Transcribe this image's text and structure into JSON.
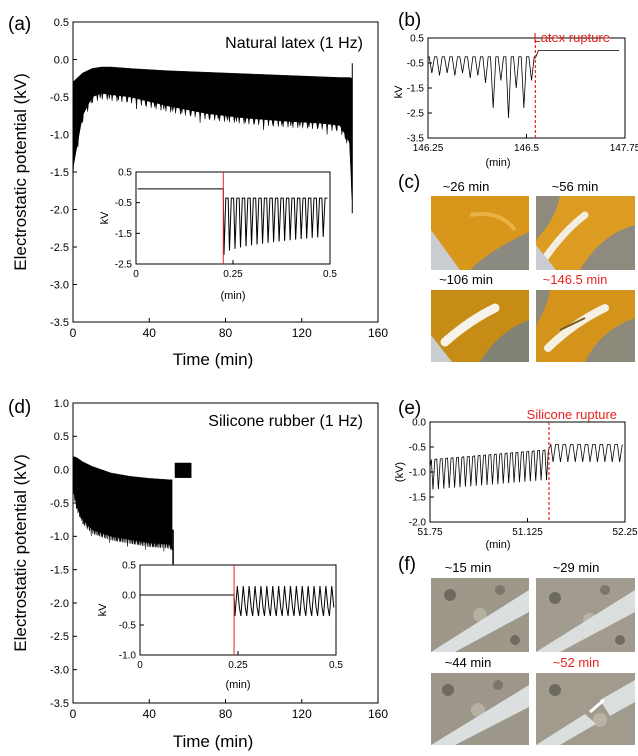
{
  "colors": {
    "rupture": "#e8231f",
    "ink": "#000000",
    "latex_photo": "#d99a1c",
    "silicone_photo": "#a8a79c"
  },
  "panels": {
    "a": {
      "letter": "(a)",
      "title": "Natural latex (1 Hz)"
    },
    "b": {
      "letter": "(b)",
      "annotation": "Latex rupture"
    },
    "c": {
      "letter": "(c)",
      "photos": [
        "~26 min",
        "~56 min",
        "~106 min",
        "~146.5 min"
      ],
      "highlight_index": 3
    },
    "d": {
      "letter": "(d)",
      "title": "Silicone rubber (1 Hz)"
    },
    "e": {
      "letter": "(e)",
      "annotation": "Silicone rupture"
    },
    "f": {
      "letter": "(f)",
      "photos": [
        "~15 min",
        "~29 min",
        "~44 min",
        "~52 min"
      ],
      "highlight_index": 3
    }
  },
  "chart_data": [
    {
      "id": "a",
      "type": "line",
      "xlabel": "Time (min)",
      "ylabel": "Electrostatic potential (kV)",
      "xlim": [
        0,
        160
      ],
      "ylim": [
        -3.5,
        0.5
      ],
      "xticks": [
        "0",
        "40",
        "80",
        "120",
        "160"
      ],
      "yticks": [
        "0.5",
        "0.0",
        "-0.5",
        "-1.0",
        "-1.5",
        "-2.0",
        "-2.5",
        "-3.0",
        "-3.5"
      ],
      "series": [
        {
          "x": [
            0,
            5,
            10,
            15,
            20,
            30,
            50,
            70,
            90,
            110,
            130,
            140,
            145,
            146.5
          ],
          "upper": [
            -0.3,
            -0.18,
            -0.12,
            -0.1,
            -0.1,
            -0.12,
            -0.15,
            -0.17,
            -0.19,
            -0.21,
            -0.23,
            -0.24,
            -0.24,
            -0.25
          ],
          "lower": [
            -1.45,
            -0.75,
            -0.5,
            -0.45,
            -0.47,
            -0.5,
            -0.62,
            -0.72,
            -0.78,
            -0.82,
            -0.85,
            -0.88,
            -1.1,
            -1.9
          ]
        }
      ]
    },
    {
      "id": "a-inset",
      "type": "line",
      "xlabel": "(min)",
      "ylabel": "kV",
      "xlim": [
        0,
        0.5
      ],
      "ylim": [
        -2.5,
        0.5
      ],
      "xticks": [
        "0",
        "0.25",
        "0.5"
      ],
      "yticks": [
        "0.5",
        "-0.5",
        "-1.5",
        "-2.5"
      ],
      "onset": 0.225,
      "baseline": -0.05,
      "peak": -0.35,
      "trough_start": -2.2,
      "trough_end": -1.6,
      "cycles": 19
    },
    {
      "id": "b",
      "type": "line",
      "xlabel": "(min)",
      "ylabel": "kV",
      "xlim": [
        146.25,
        147.75
      ],
      "ylim": [
        -3.5,
        0.5
      ],
      "xticks": [
        "146.25",
        "146.5",
        "147.75"
      ],
      "yticks": [
        "0.5",
        "-0.5",
        "-1.5",
        "-2.5",
        "-3.5"
      ],
      "rupture_x": 146.65
    },
    {
      "id": "d",
      "type": "line",
      "xlabel": "Time (min)",
      "ylabel": "Electrostatic potential (kV)",
      "xlim": [
        0,
        160
      ],
      "ylim": [
        -3.5,
        1.0
      ],
      "xticks": [
        "0",
        "40",
        "80",
        "120",
        "160"
      ],
      "yticks": [
        "1.0",
        "0.5",
        "0.0",
        "-0.5",
        "-1.0",
        "-1.5",
        "-2.0",
        "-2.5",
        "-3.0",
        "-3.5"
      ],
      "series": [
        {
          "x": [
            0,
            2,
            5,
            10,
            20,
            30,
            40,
            50,
            52
          ],
          "upper": [
            0.2,
            0.18,
            0.12,
            0.05,
            -0.05,
            -0.1,
            -0.13,
            -0.15,
            -0.15
          ],
          "lower": [
            -0.3,
            -0.55,
            -0.75,
            -0.9,
            -1.0,
            -1.05,
            -1.1,
            -1.12,
            -1.15
          ]
        }
      ]
    },
    {
      "id": "d-inset",
      "type": "line",
      "xlabel": "(min)",
      "ylabel": "kV",
      "xlim": [
        0,
        0.5
      ],
      "ylim": [
        -1.0,
        0.5
      ],
      "xticks": [
        "0",
        "0.25",
        "0.5"
      ],
      "yticks": [
        "0.5",
        "0.0",
        "-0.5",
        "-1.0"
      ],
      "onset": 0.24,
      "baseline": 0.0,
      "peak": 0.15,
      "trough": -0.35,
      "cycles": 17
    },
    {
      "id": "e",
      "type": "line",
      "xlabel": "(min)",
      "ylabel": "(kV)",
      "xlim": [
        51.75,
        52.25
      ],
      "ylim": [
        -2.0,
        0.0
      ],
      "xticks": [
        "51.75",
        "51.125",
        "52.25"
      ],
      "yticks": [
        "0.0",
        "-0.5",
        "-1.0",
        "-1.5",
        "-2.0"
      ],
      "rupture_x": 52.05
    }
  ]
}
